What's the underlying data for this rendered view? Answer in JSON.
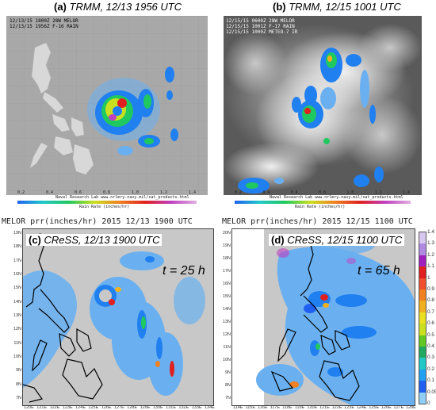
{
  "panels": {
    "a": {
      "label": "(a)",
      "title": "TRMM, 12/13 1956 UTC",
      "meta_lines": [
        "12/13/15 1800Z 28W MELOR",
        "12/13/15 1956Z F-16 RAIN"
      ],
      "credit": "Naval Research Lab  www.nrlmry.navy.mil/sat_products.html",
      "scale_title": "Rain Rate (inches/hr)",
      "scale_ticks": [
        "0.2",
        "0.4",
        "0.6",
        "0.8",
        "1.0",
        "1.2",
        "1.4"
      ]
    },
    "b": {
      "label": "(b)",
      "title": "TRMM, 12/15 1001 UTC",
      "meta_lines": [
        "12/15/15 0600Z 28W MELOR",
        "12/15/15 1001Z F-17 RAIN",
        "12/15/15 1000Z METEO-7 IR"
      ],
      "credit": "Naval Research Lab  www.nrlmry.navy.mil/sat_products.html",
      "scale_title": "Rain Rate (inches/hr)",
      "scale_ticks": [
        "0.2",
        "0.4",
        "0.6",
        "0.8",
        "1.0",
        "1.2",
        "1.4"
      ]
    },
    "c": {
      "header": "MELOR prr(inches/hr) 2015 12/13 1900 UTC",
      "label": "(c)",
      "title": "CReSS, 12/13 1900 UTC",
      "lead": "t = 25 h",
      "yticks": [
        "19N",
        "18N",
        "17N",
        "16N",
        "15N",
        "14N",
        "13N",
        "12N",
        "11N",
        "10N",
        "9N",
        "8N",
        "7N"
      ],
      "xticks": [
        "120E",
        "121E",
        "122E",
        "123E",
        "124E",
        "125E",
        "126E",
        "127E",
        "128E",
        "129E",
        "130E",
        "131E",
        "132E",
        "133E",
        "134E"
      ]
    },
    "d": {
      "header": "MELOR prr(inches/hr) 2015 12/15 1100 UTC",
      "label": "(d)",
      "title": "CReSS, 12/15 1100 UTC",
      "lead": "t = 65 h",
      "yticks": [
        "20N",
        "19N",
        "18N",
        "17N",
        "16N",
        "15N",
        "14N",
        "13N",
        "12N",
        "11N",
        "10N",
        "9N",
        "8N",
        "7N"
      ],
      "xticks": [
        "114E",
        "115E",
        "116E",
        "117E",
        "118E",
        "119E",
        "120E",
        "121E",
        "122E",
        "123E",
        "124E",
        "125E",
        "126E",
        "127E",
        "128E"
      ]
    }
  },
  "colorbar": {
    "ticks": [
      "1.4",
      "1.3",
      "1.2",
      "1.1",
      "1",
      "0.9",
      "0.8",
      "0.7",
      "0.6",
      "0.5",
      "0.4",
      "0.3",
      "0.2",
      "0.1",
      "0.05",
      "0"
    ],
    "colors": [
      "#d8c8f0",
      "#b089e0",
      "#a020c0",
      "#e02020",
      "#f05030",
      "#f08020",
      "#f0b020",
      "#e8e020",
      "#c8e020",
      "#60c820",
      "#20a860",
      "#20c8c8",
      "#20a0f0",
      "#2060f0",
      "#90d0f8"
    ]
  },
  "colors": {
    "sat_gray": "#a8a8a8",
    "model_gray": "#c8c8c8",
    "rain_light": "#6ab0f0",
    "rain_mid": "#2080f0",
    "coast": "#000000"
  }
}
